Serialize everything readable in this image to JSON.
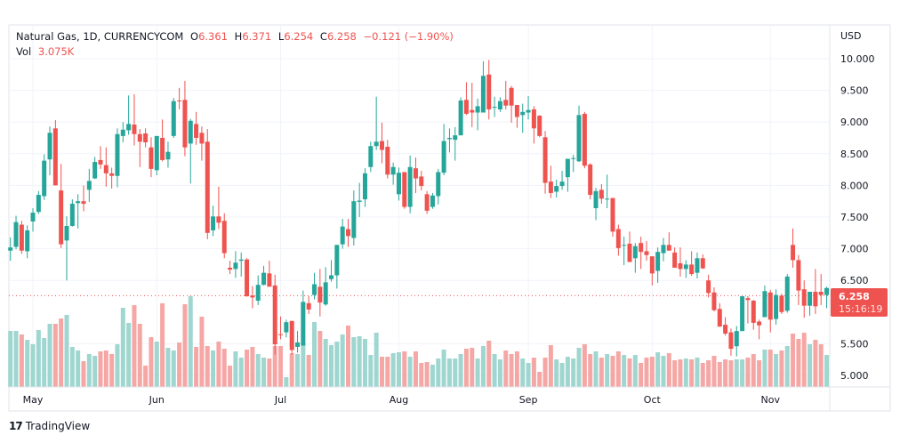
{
  "header": {
    "symbol": "Natural Gas, 1D, CURRENCYCOM",
    "o_label": "O",
    "o": "6.361",
    "h_label": "H",
    "h": "6.371",
    "l_label": "L",
    "l": "6.254",
    "c_label": "C",
    "c": "6.258",
    "change": "−0.121 (−1.90%)",
    "vol_label": "Vol",
    "vol": "3.075K"
  },
  "brand": {
    "logo": "17",
    "name": "TradingView"
  },
  "colors": {
    "up": "#26a69a",
    "down": "#ef5350",
    "up_vol": "#9fd6d0",
    "down_vol": "#f5a7a5",
    "grid": "#f0f3fa"
  },
  "chart_data": {
    "type": "candlestick",
    "title": "Natural Gas, 1D, CURRENCYCOM",
    "currency_label": "USD",
    "ylim": [
      4.82,
      10.53
    ],
    "yticks": [
      "10.000",
      "9.500",
      "9.000",
      "8.500",
      "8.000",
      "7.500",
      "7.000",
      "6.500",
      "5.500",
      "5.000"
    ],
    "ytick_values": [
      10,
      9.5,
      9,
      8.5,
      8,
      7.5,
      7,
      6.5,
      5.5,
      5
    ],
    "months": [
      {
        "label": "May",
        "index": 4
      },
      {
        "label": "Jun",
        "index": 26
      },
      {
        "label": "Jul",
        "index": 48
      },
      {
        "label": "Aug",
        "index": 69
      },
      {
        "label": "Sep",
        "index": 92
      },
      {
        "label": "Oct",
        "index": 114
      },
      {
        "label": "Nov",
        "index": 135
      }
    ],
    "last_price": {
      "value": 6.258,
      "label": "6.258",
      "countdown": "15:16:19"
    },
    "volume_unit": "K",
    "columns": [
      "open",
      "high",
      "low",
      "close",
      "volume"
    ],
    "candles": [
      [
        6.97,
        7.18,
        6.81,
        7.02,
        31.5
      ],
      [
        7.03,
        7.52,
        6.99,
        7.42,
        31.5
      ],
      [
        7.38,
        7.44,
        6.92,
        6.97,
        29.5
      ],
      [
        6.96,
        7.37,
        6.85,
        7.29,
        26.5
      ],
      [
        7.43,
        7.64,
        7.27,
        7.57,
        24
      ],
      [
        7.58,
        7.91,
        7.55,
        7.85,
        32
      ],
      [
        7.83,
        8.49,
        7.77,
        8.39,
        27.5
      ],
      [
        8.41,
        8.93,
        8.16,
        8.83,
        35.5
      ],
      [
        8.9,
        9.03,
        8.0,
        8.0,
        35.5
      ],
      [
        7.92,
        8.34,
        7.01,
        7.07,
        38.5
      ],
      [
        7.13,
        7.51,
        6.5,
        7.36,
        40.5
      ],
      [
        7.36,
        7.78,
        7.35,
        7.71,
        22.5
      ],
      [
        7.72,
        7.86,
        7.32,
        7.75,
        20.5
      ],
      [
        7.75,
        8.0,
        7.59,
        7.71,
        14.5
      ],
      [
        7.93,
        8.26,
        7.74,
        8.07,
        18.5
      ],
      [
        8.11,
        8.45,
        8.1,
        8.37,
        17.5
      ],
      [
        8.4,
        8.62,
        8.26,
        8.33,
        20
      ],
      [
        8.32,
        8.6,
        7.98,
        8.19,
        20.5
      ],
      [
        8.19,
        8.28,
        7.95,
        8.15,
        18.5
      ],
      [
        8.15,
        8.9,
        7.97,
        8.81,
        24
      ],
      [
        8.78,
        9.0,
        8.68,
        8.88,
        44.5
      ],
      [
        8.87,
        9.42,
        8.8,
        8.97,
        36
      ],
      [
        8.96,
        9.44,
        8.63,
        8.81,
        46
      ],
      [
        8.81,
        8.89,
        8.29,
        8.69,
        35.5
      ],
      [
        8.82,
        8.9,
        8.6,
        8.68,
        12
      ],
      [
        8.6,
        8.76,
        8.13,
        8.26,
        28
      ],
      [
        8.24,
        8.78,
        8.16,
        8.78,
        25.5
      ],
      [
        8.75,
        9.04,
        8.38,
        8.4,
        47
      ],
      [
        8.41,
        8.69,
        8.28,
        8.53,
        22
      ],
      [
        8.78,
        9.38,
        8.75,
        9.33,
        20.5
      ],
      [
        9.34,
        9.54,
        9.2,
        9.33,
        25
      ],
      [
        9.35,
        9.65,
        8.46,
        8.6,
        46.5
      ],
      [
        8.66,
        9.05,
        8.03,
        9.02,
        51
      ],
      [
        8.97,
        9.16,
        8.64,
        8.75,
        22.5
      ],
      [
        8.83,
        8.93,
        8.39,
        8.66,
        39.5
      ],
      [
        8.69,
        8.89,
        7.15,
        7.25,
        23
      ],
      [
        7.29,
        7.68,
        7.2,
        7.51,
        20.5
      ],
      [
        7.51,
        7.98,
        7.31,
        7.41,
        25.5
      ],
      [
        7.44,
        7.56,
        6.85,
        6.93,
        21.5
      ],
      [
        6.7,
        6.81,
        6.6,
        6.67,
        12
      ],
      [
        6.68,
        6.96,
        6.54,
        6.78,
        20
      ],
      [
        6.81,
        6.94,
        6.56,
        6.83,
        16.5
      ],
      [
        6.83,
        6.85,
        6.24,
        6.25,
        21
      ],
      [
        6.26,
        6.41,
        6.06,
        6.23,
        22.5
      ],
      [
        6.18,
        6.58,
        6.11,
        6.43,
        18.5
      ],
      [
        6.43,
        6.73,
        6.42,
        6.62,
        16.5
      ],
      [
        6.61,
        6.81,
        6.4,
        6.4,
        16
      ],
      [
        6.42,
        6.59,
        5.33,
        5.49,
        23
      ],
      [
        5.65,
        5.93,
        5.57,
        5.64,
        23
      ],
      [
        5.68,
        5.88,
        5.6,
        5.84,
        5.5
      ],
      [
        5.86,
        5.86,
        5.33,
        5.4,
        19
      ],
      [
        5.45,
        5.7,
        5.36,
        5.52,
        18.5
      ],
      [
        5.47,
        6.34,
        5.47,
        6.16,
        23.5
      ],
      [
        6.14,
        6.25,
        5.97,
        6.04,
        18
      ],
      [
        6.27,
        6.62,
        6.2,
        6.44,
        36.5
      ],
      [
        6.4,
        6.68,
        5.93,
        6.15,
        31.5
      ],
      [
        6.12,
        6.71,
        6.1,
        6.47,
        27
      ],
      [
        6.52,
        6.82,
        6.48,
        6.58,
        23.5
      ],
      [
        6.58,
        7.06,
        6.37,
        7.06,
        25.5
      ],
      [
        7.07,
        7.47,
        7.0,
        7.35,
        29.5
      ],
      [
        7.31,
        7.47,
        7.03,
        7.2,
        34.5
      ],
      [
        7.17,
        7.92,
        7.05,
        7.75,
        28
      ],
      [
        7.74,
        8.04,
        7.5,
        7.76,
        28.5
      ],
      [
        7.78,
        8.27,
        7.66,
        8.19,
        27
      ],
      [
        8.29,
        8.69,
        8.21,
        8.62,
        18
      ],
      [
        8.62,
        9.4,
        8.56,
        8.69,
        30.5
      ],
      [
        8.7,
        8.99,
        8.35,
        8.56,
        17
      ],
      [
        8.61,
        8.72,
        8.11,
        8.17,
        17
      ],
      [
        8.17,
        8.36,
        8.01,
        8.29,
        19
      ],
      [
        7.86,
        8.28,
        7.76,
        8.2,
        19.5
      ],
      [
        8.21,
        8.21,
        7.63,
        7.66,
        20
      ],
      [
        7.66,
        8.47,
        7.56,
        8.29,
        17
      ],
      [
        8.27,
        8.44,
        7.88,
        8.11,
        20
      ],
      [
        8.14,
        8.23,
        7.92,
        7.99,
        13.5
      ],
      [
        7.86,
        7.91,
        7.55,
        7.6,
        14
      ],
      [
        7.66,
        7.88,
        7.63,
        7.84,
        12.5
      ],
      [
        7.83,
        8.26,
        7.7,
        8.21,
        16
      ],
      [
        8.2,
        8.97,
        8.16,
        8.7,
        21
      ],
      [
        8.73,
        8.9,
        8.52,
        8.75,
        16
      ],
      [
        8.72,
        8.92,
        8.39,
        8.79,
        16
      ],
      [
        8.79,
        9.39,
        8.79,
        9.34,
        18.5
      ],
      [
        9.35,
        9.63,
        9.11,
        9.13,
        21.5
      ],
      [
        9.19,
        9.62,
        8.92,
        9.15,
        22
      ],
      [
        9.15,
        9.37,
        8.87,
        9.25,
        16
      ],
      [
        9.15,
        9.96,
        9.15,
        9.73,
        23
      ],
      [
        9.75,
        9.98,
        9.04,
        9.2,
        26
      ],
      [
        9.23,
        9.4,
        9.08,
        9.24,
        18.5
      ],
      [
        9.2,
        9.39,
        9.16,
        9.33,
        15.5
      ],
      [
        9.35,
        9.65,
        9.2,
        9.26,
        20.5
      ],
      [
        9.54,
        9.57,
        8.99,
        9.26,
        18.5
      ],
      [
        9.27,
        9.27,
        8.91,
        9.08,
        20
      ],
      [
        9.11,
        9.29,
        8.83,
        9.16,
        16
      ],
      [
        9.15,
        9.41,
        9.04,
        9.19,
        13.5
      ],
      [
        9.2,
        9.25,
        8.66,
        8.9,
        16.5
      ],
      [
        9.1,
        9.11,
        8.76,
        8.78,
        8.5
      ],
      [
        8.76,
        8.86,
        7.87,
        8.04,
        16.5
      ],
      [
        8.06,
        8.31,
        7.8,
        7.88,
        23.5
      ],
      [
        7.9,
        8.09,
        7.81,
        7.99,
        15.5
      ],
      [
        7.99,
        8.23,
        7.93,
        8.06,
        13.5
      ],
      [
        8.13,
        8.42,
        7.9,
        8.42,
        17
      ],
      [
        8.42,
        8.48,
        8.21,
        8.43,
        16
      ],
      [
        8.38,
        9.26,
        8.37,
        9.11,
        22
      ],
      [
        9.13,
        9.16,
        8.27,
        8.31,
        24
      ],
      [
        8.33,
        8.35,
        7.78,
        7.85,
        18.5
      ],
      [
        7.64,
        7.96,
        7.45,
        7.91,
        20
      ],
      [
        7.93,
        8.02,
        7.71,
        7.79,
        16.5
      ],
      [
        7.78,
        8.17,
        7.64,
        7.79,
        18.5
      ],
      [
        7.8,
        7.8,
        7.19,
        7.27,
        17.5
      ],
      [
        7.31,
        7.38,
        6.89,
        7.01,
        20
      ],
      [
        7.05,
        7.19,
        6.74,
        7.06,
        18
      ],
      [
        7.08,
        7.27,
        6.79,
        6.79,
        16
      ],
      [
        6.85,
        7.09,
        6.62,
        7.04,
        18
      ],
      [
        7.09,
        7.19,
        6.68,
        6.95,
        13.5
      ],
      [
        6.96,
        7.12,
        6.81,
        6.9,
        16.5
      ],
      [
        6.88,
        6.88,
        6.42,
        6.61,
        17
      ],
      [
        6.65,
        7.02,
        6.46,
        6.95,
        19.5
      ],
      [
        6.93,
        7.17,
        6.8,
        7.06,
        17.5
      ],
      [
        7.06,
        7.26,
        6.97,
        6.97,
        19
      ],
      [
        6.94,
        7.02,
        6.7,
        6.7,
        15
      ],
      [
        6.77,
        7.02,
        6.56,
        6.68,
        15.5
      ],
      [
        6.68,
        6.82,
        6.54,
        6.75,
        16
      ],
      [
        6.75,
        6.96,
        6.57,
        6.6,
        15.5
      ],
      [
        6.62,
        6.94,
        6.53,
        6.85,
        16.5
      ],
      [
        6.85,
        6.91,
        6.68,
        6.69,
        13.5
      ],
      [
        6.5,
        6.59,
        6.23,
        6.3,
        15
      ],
      [
        6.31,
        6.39,
        6.01,
        6.03,
        17.5
      ],
      [
        6.05,
        6.14,
        5.77,
        5.77,
        14
      ],
      [
        5.8,
        5.92,
        5.63,
        5.66,
        15.5
      ],
      [
        5.68,
        5.74,
        5.31,
        5.42,
        15
      ],
      [
        5.46,
        5.78,
        5.3,
        5.7,
        15.5
      ],
      [
        5.7,
        6.25,
        5.7,
        6.25,
        15.5
      ],
      [
        6.22,
        6.25,
        5.82,
        6.19,
        16.5
      ],
      [
        6.18,
        6.19,
        5.72,
        5.83,
        18.5
      ],
      [
        5.85,
        5.88,
        5.57,
        5.79,
        15
      ],
      [
        5.92,
        6.42,
        5.92,
        6.33,
        21
      ],
      [
        6.31,
        6.35,
        5.68,
        5.88,
        21
      ],
      [
        5.89,
        6.36,
        5.8,
        6.27,
        18.5
      ],
      [
        6.26,
        6.29,
        5.97,
        6.0,
        20.5
      ],
      [
        6.02,
        6.6,
        5.99,
        6.56,
        23
      ],
      [
        7.06,
        7.32,
        6.7,
        6.82,
        30
      ],
      [
        6.82,
        6.9,
        6.11,
        6.34,
        27
      ],
      [
        6.36,
        6.5,
        5.91,
        6.1,
        30.5
      ],
      [
        6.1,
        6.32,
        5.94,
        6.32,
        24
      ],
      [
        6.32,
        6.68,
        5.97,
        6.09,
        26.5
      ],
      [
        6.32,
        6.6,
        6.11,
        6.27,
        24
      ],
      [
        6.27,
        6.4,
        6.06,
        6.38,
        18
      ],
      [
        6.361,
        6.371,
        6.254,
        6.258,
        3.075
      ]
    ]
  }
}
